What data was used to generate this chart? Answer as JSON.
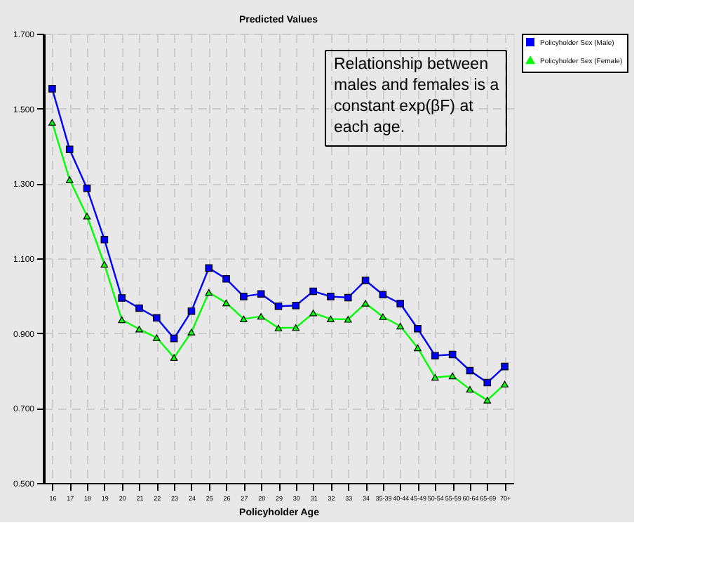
{
  "chart_data": {
    "type": "line",
    "title": "Predicted Values",
    "xlabel": "Policyholder Age",
    "categories": [
      "16",
      "17",
      "18",
      "19",
      "20",
      "21",
      "22",
      "23",
      "24",
      "25",
      "26",
      "27",
      "28",
      "29",
      "30",
      "31",
      "32",
      "33",
      "34",
      "35-39",
      "40-44",
      "45-49",
      "50-54",
      "55-59",
      "60-64",
      "65-69",
      "70+"
    ],
    "series": [
      {
        "name": "Policyholder Sex (Male)",
        "color": "#0000ff",
        "marker": "square",
        "values": [
          1.553,
          1.391,
          1.287,
          1.15,
          0.994,
          0.967,
          0.941,
          0.886,
          0.959,
          1.074,
          1.045,
          0.998,
          1.005,
          0.972,
          0.974,
          1.012,
          0.998,
          0.995,
          1.041,
          1.003,
          0.979,
          0.912,
          0.84,
          0.843,
          0.8,
          0.768,
          0.811
        ]
      },
      {
        "name": "Policyholder Sex (Female)",
        "color": "#00ff00",
        "marker": "triangle",
        "values": [
          1.463,
          1.31,
          1.213,
          1.084,
          0.936,
          0.911,
          0.888,
          0.835,
          0.903,
          1.009,
          0.981,
          0.938,
          0.945,
          0.914,
          0.915,
          0.954,
          0.938,
          0.937,
          0.98,
          0.944,
          0.919,
          0.861,
          0.782,
          0.786,
          0.75,
          0.721,
          0.764
        ]
      }
    ],
    "ylim": [
      0.5,
      1.7
    ],
    "yticks": [
      {
        "value": 0.5,
        "label": "0.500"
      },
      {
        "value": 0.7,
        "label": "0.700"
      },
      {
        "value": 0.9,
        "label": "0.900"
      },
      {
        "value": 1.1,
        "label": "1.100"
      },
      {
        "value": 1.3,
        "label": "1.300"
      },
      {
        "value": 1.5,
        "label": "1.500"
      },
      {
        "value": 1.7,
        "label": "1.700"
      }
    ],
    "grid": true,
    "line_style": "solid",
    "legend": "right",
    "annotations": [
      "Relationship between males and females is a constant exp(βF) at each age."
    ]
  }
}
